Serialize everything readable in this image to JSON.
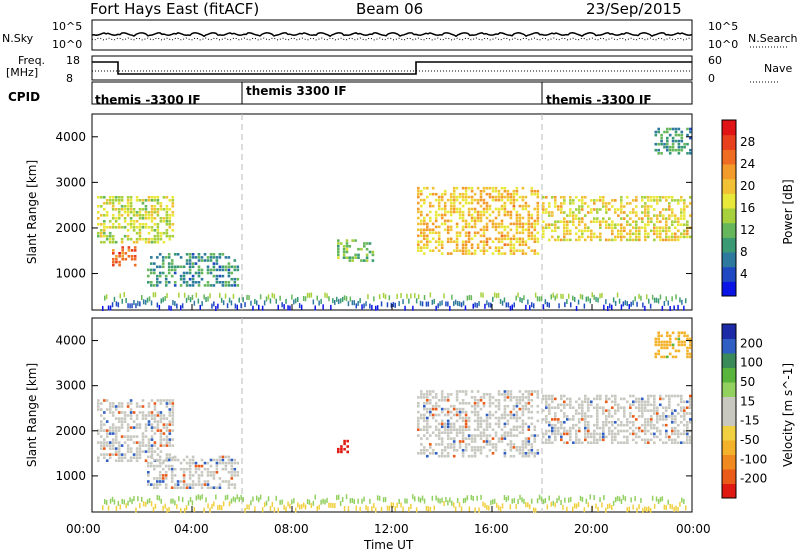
{
  "header": {
    "station": "Fort Hays East (fitACF)",
    "beam": "Beam 06",
    "date": "23/Sep/2015"
  },
  "noise_panel": {
    "left_label": "N.Sky",
    "right_label": "N.Search",
    "left_ticks": [
      "10^5",
      "10^0"
    ],
    "right_ticks": [
      "10^5",
      "10^0"
    ]
  },
  "freq_panel": {
    "left_label_line1": "Freq.",
    "left_label_line2": "[MHz]",
    "right_label": "Nave",
    "left_ticks": [
      "18",
      "8"
    ],
    "right_ticks": [
      "60",
      "0"
    ]
  },
  "cpid_panel": {
    "label": "CPID",
    "segments": [
      {
        "start_hour": 0,
        "end_hour": 6,
        "text": "themis -3300 IF"
      },
      {
        "start_hour": 6,
        "end_hour": 18,
        "text": "themis 3300 IF"
      },
      {
        "start_hour": 18,
        "end_hour": 24,
        "text": "themis -3300 IF"
      }
    ]
  },
  "x_axis": {
    "label": "Time UT",
    "ticks": [
      "00:00",
      "04:00",
      "08:00",
      "12:00",
      "16:00",
      "20:00",
      "00:00"
    ]
  },
  "chart_data": [
    {
      "type": "heatmap",
      "parameter": "power",
      "ylabel": "Slant Range [km]",
      "yticks": [
        "1000",
        "2000",
        "3000",
        "4000"
      ],
      "ylim": [
        200,
        4500
      ],
      "xlim_hours": [
        0,
        24
      ],
      "colorbar": {
        "label": "Power [dB]",
        "ticks": [
          "4",
          "8",
          "12",
          "16",
          "20",
          "24",
          "28"
        ],
        "range": [
          0,
          32
        ],
        "colors": [
          "#0a14e6",
          "#1f49c2",
          "#2d7a9e",
          "#3a9a73",
          "#66b75b",
          "#a6d03c",
          "#e8e83a",
          "#f2c034",
          "#f39b2a",
          "#ef6c22",
          "#e8401c",
          "#e01414"
        ]
      },
      "regions": [
        {
          "t": [
            0.2,
            3.3
          ],
          "range": [
            1650,
            2700
          ],
          "level": 16
        },
        {
          "t": [
            0.8,
            1.8
          ],
          "range": [
            1150,
            1600
          ],
          "level": 26
        },
        {
          "t": [
            2.2,
            5.9
          ],
          "range": [
            700,
            1450
          ],
          "level": 8
        },
        {
          "t": [
            9.8,
            11.3
          ],
          "range": [
            1250,
            1750
          ],
          "level": 12
        },
        {
          "t": [
            13.0,
            17.9
          ],
          "range": [
            1400,
            2900
          ],
          "level": 20
        },
        {
          "t": [
            18.0,
            24.0
          ],
          "range": [
            1700,
            2700
          ],
          "level": 18
        },
        {
          "t": [
            22.5,
            24.0
          ],
          "range": [
            3600,
            4200
          ],
          "level": 8
        }
      ]
    },
    {
      "type": "heatmap",
      "parameter": "velocity",
      "ylabel": "Slant Range [km]",
      "yticks": [
        "1000",
        "2000",
        "3000",
        "4000"
      ],
      "ylim": [
        200,
        4500
      ],
      "xlim_hours": [
        0,
        24
      ],
      "colorbar": {
        "label": "Velocity [m s^-1]",
        "ticks": [
          "200",
          "100",
          "50",
          "15",
          "-15",
          "-50",
          "-100",
          "-200"
        ],
        "colors": [
          "#1d2aa8",
          "#2f5fc2",
          "#3a8a5a",
          "#58b43a",
          "#92d060",
          "#c8c8c0",
          "#c8c8c0",
          "#f0d040",
          "#f3b22a",
          "#f08a20",
          "#ea5a18",
          "#e01a12"
        ]
      },
      "regions": [
        {
          "t": [
            0.2,
            3.3
          ],
          "range": [
            1300,
            2700
          ],
          "velocity": 0
        },
        {
          "t": [
            2.2,
            5.9
          ],
          "range": [
            700,
            1450
          ],
          "velocity": 0
        },
        {
          "t": [
            9.8,
            10.3
          ],
          "range": [
            1500,
            1800
          ],
          "velocity": -200
        },
        {
          "t": [
            13.0,
            17.9
          ],
          "range": [
            1400,
            2900
          ],
          "velocity": 0
        },
        {
          "t": [
            18.0,
            24.0
          ],
          "range": [
            1700,
            2800
          ],
          "velocity": 0
        },
        {
          "t": [
            22.5,
            24.0
          ],
          "range": [
            3600,
            4200
          ],
          "velocity": -50
        }
      ]
    }
  ]
}
